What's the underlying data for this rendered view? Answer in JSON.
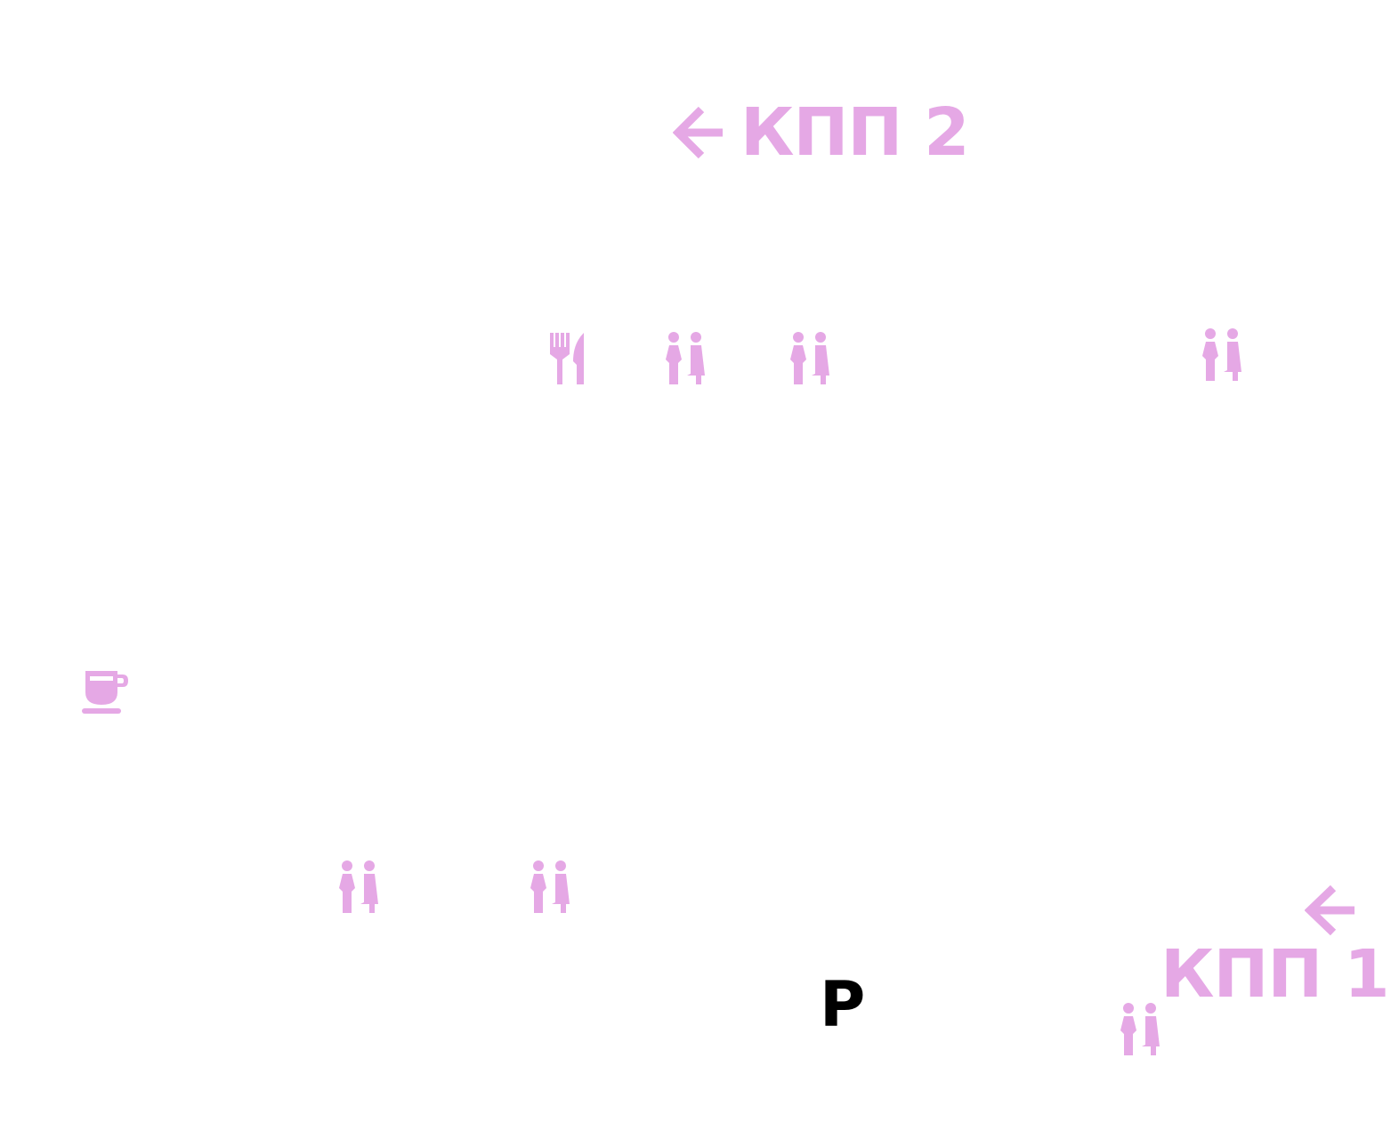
{
  "map": {
    "accent_color": "#e5a8e5",
    "background_color": "#ffffff"
  },
  "gates": {
    "gate_2": {
      "label": "КПП 2",
      "icon": "arrow-left-icon"
    },
    "gate_1": {
      "label": "КПП 1",
      "icon": "arrow-left-icon"
    }
  },
  "parking": {
    "label": "P"
  },
  "pois": {
    "restaurant": {
      "icon": "fork-knife-icon"
    },
    "cafe": {
      "icon": "coffee-cup-icon"
    },
    "toilets": {
      "icon": "toilet-icon",
      "count": 6
    }
  }
}
